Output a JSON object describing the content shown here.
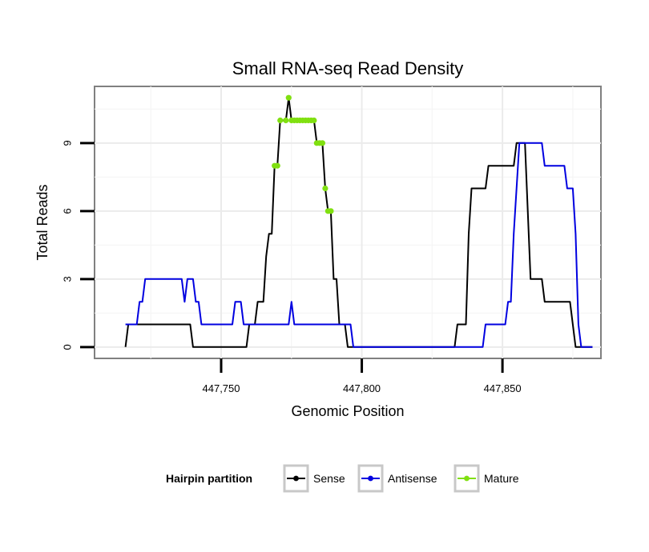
{
  "chart_data": {
    "type": "line",
    "title": "Small RNA-seq Read Density",
    "xlabel": "Genomic Position",
    "ylabel": "Total Reads",
    "xlim": [
      447705,
      447885
    ],
    "ylim": [
      -0.5,
      11.5
    ],
    "x_ticks": [
      447750,
      447800,
      447850
    ],
    "x_tick_labels": [
      "447,750",
      "447,800",
      "447,850"
    ],
    "y_ticks": [
      0,
      3,
      6,
      9
    ],
    "y_tick_labels": [
      "0",
      "3",
      "6",
      "9"
    ],
    "grid": true,
    "legend": {
      "title": "Hairpin partition",
      "placement": "bottom",
      "entries": [
        "Sense",
        "Antisense",
        "Mature"
      ]
    },
    "series": [
      {
        "name": "Sense",
        "color": "#000000",
        "points": [
          [
            447716,
            0
          ],
          [
            447717,
            1
          ],
          [
            447734,
            1
          ],
          [
            447739,
            1
          ],
          [
            447740,
            0
          ],
          [
            447759,
            0
          ],
          [
            447760,
            1
          ],
          [
            447762,
            1
          ],
          [
            447763,
            2
          ],
          [
            447765,
            2
          ],
          [
            447766,
            4
          ],
          [
            447767,
            5
          ],
          [
            447768,
            5
          ],
          [
            447769,
            8
          ],
          [
            447770,
            8
          ],
          [
            447771,
            10
          ],
          [
            447773,
            10
          ],
          [
            447774,
            11
          ],
          [
            447775,
            10
          ],
          [
            447783,
            10
          ],
          [
            447784,
            9
          ],
          [
            447786,
            9
          ],
          [
            447787,
            7
          ],
          [
            447788,
            6
          ],
          [
            447789,
            6
          ],
          [
            447790,
            3
          ],
          [
            447791,
            3
          ],
          [
            447792,
            1
          ],
          [
            447794,
            1
          ],
          [
            447795,
            0
          ],
          [
            447833,
            0
          ],
          [
            447834,
            1
          ],
          [
            447837,
            1
          ],
          [
            447838,
            5
          ],
          [
            447839,
            7
          ],
          [
            447844,
            7
          ],
          [
            447845,
            8
          ],
          [
            447854,
            8
          ],
          [
            447855,
            9
          ],
          [
            447858,
            9
          ],
          [
            447859,
            6
          ],
          [
            447860,
            3
          ],
          [
            447864,
            3
          ],
          [
            447865,
            2
          ],
          [
            447874,
            2
          ],
          [
            447875,
            1
          ],
          [
            447876,
            0
          ],
          [
            447882,
            0
          ]
        ]
      },
      {
        "name": "Antisense",
        "color": "#0000e0",
        "points": [
          [
            447716,
            1
          ],
          [
            447720,
            1
          ],
          [
            447721,
            2
          ],
          [
            447722,
            2
          ],
          [
            447723,
            3
          ],
          [
            447736,
            3
          ],
          [
            447737,
            2
          ],
          [
            447738,
            3
          ],
          [
            447740,
            3
          ],
          [
            447741,
            2
          ],
          [
            447742,
            2
          ],
          [
            447743,
            1
          ],
          [
            447754,
            1
          ],
          [
            447755,
            2
          ],
          [
            447757,
            2
          ],
          [
            447758,
            1
          ],
          [
            447774,
            1
          ],
          [
            447775,
            2
          ],
          [
            447776,
            1
          ],
          [
            447796,
            1
          ],
          [
            447797,
            0
          ],
          [
            447833,
            0
          ],
          [
            447843,
            0
          ],
          [
            447844,
            1
          ],
          [
            447851,
            1
          ],
          [
            447852,
            2
          ],
          [
            447853,
            2
          ],
          [
            447854,
            5
          ],
          [
            447855,
            7
          ],
          [
            447856,
            9
          ],
          [
            447864,
            9
          ],
          [
            447865,
            8
          ],
          [
            447872,
            8
          ],
          [
            447873,
            7
          ],
          [
            447875,
            7
          ],
          [
            447876,
            5
          ],
          [
            447877,
            1
          ],
          [
            447878,
            0
          ],
          [
            447882,
            0
          ]
        ]
      },
      {
        "name": "Mature",
        "color": "#80e010",
        "points": [
          [
            447769,
            8
          ],
          [
            447770,
            8
          ],
          [
            447771,
            10
          ],
          [
            447773,
            10
          ],
          [
            447774,
            11
          ],
          [
            447775,
            10
          ],
          [
            447776,
            10
          ],
          [
            447777,
            10
          ],
          [
            447778,
            10
          ],
          [
            447779,
            10
          ],
          [
            447780,
            10
          ],
          [
            447781,
            10
          ],
          [
            447782,
            10
          ],
          [
            447783,
            10
          ],
          [
            447784,
            9
          ],
          [
            447785,
            9
          ],
          [
            447786,
            9
          ],
          [
            447787,
            7
          ],
          [
            447788,
            6
          ],
          [
            447789,
            6
          ]
        ]
      }
    ]
  }
}
